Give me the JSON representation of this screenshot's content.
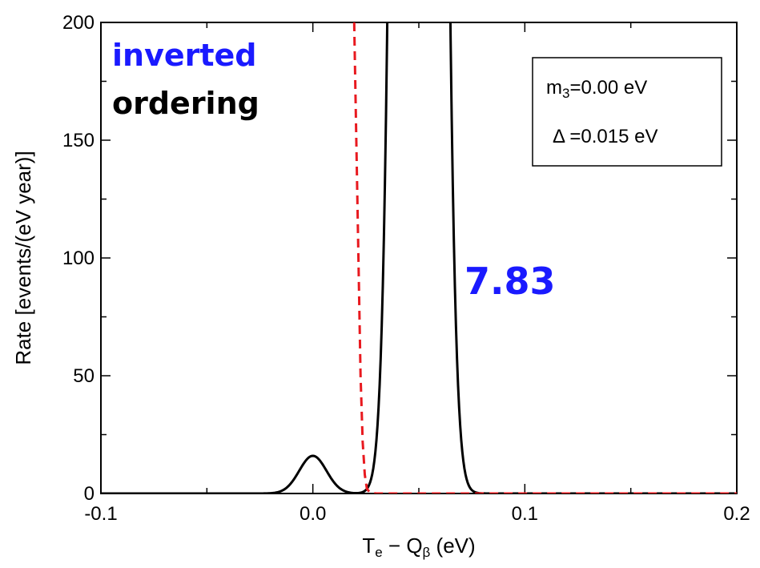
{
  "chart_data": {
    "type": "line",
    "title": "",
    "xlabel": {
      "main": "T",
      "sub1": "e",
      "mid": " − Q",
      "sub2": "β",
      "tail": " (eV)"
    },
    "ylabel": "Rate [events/(eV year)]",
    "xlim": [
      -0.1,
      0.2
    ],
    "ylim": [
      0,
      200
    ],
    "x_ticks": [
      -0.1,
      0.0,
      0.1,
      0.2
    ],
    "x_tick_labels": [
      "-0.1",
      "0.0",
      "0.1",
      "0.2"
    ],
    "y_ticks": [
      0,
      50,
      100,
      150,
      200
    ],
    "y_tick_labels": [
      "0",
      "50",
      "100",
      "150",
      "200"
    ],
    "grid": false,
    "series": [
      {
        "style": "solid",
        "color": "#000000",
        "components": [
          {
            "center": 0.0,
            "sigma": 0.0064,
            "peak": 16
          },
          {
            "center": 0.05,
            "sigma": 0.0064,
            "peak": 3000
          }
        ]
      },
      {
        "style": "dashed",
        "color": "#e8191f",
        "points": [
          [
            0.0195,
            200
          ],
          [
            0.0205,
            150
          ],
          [
            0.0215,
            100
          ],
          [
            0.0225,
            50
          ],
          [
            0.0235,
            22
          ],
          [
            0.0245,
            8
          ],
          [
            0.0255,
            2
          ],
          [
            0.027,
            0.3
          ],
          [
            0.03,
            0
          ],
          [
            0.2,
            0
          ]
        ]
      }
    ],
    "annotations": {
      "ordering_line1": "inverted",
      "ordering_line2": "ordering",
      "ordering_line1_color": "#1a1aff",
      "ordering_line2_color": "#000000",
      "value": "7.83",
      "value_color": "#1a1aff"
    },
    "legend_box": {
      "line1_prefix": "m",
      "line1_sub": "3",
      "line1_suffix": "=0.00 eV",
      "line2": "Δ =0.015 eV"
    }
  }
}
